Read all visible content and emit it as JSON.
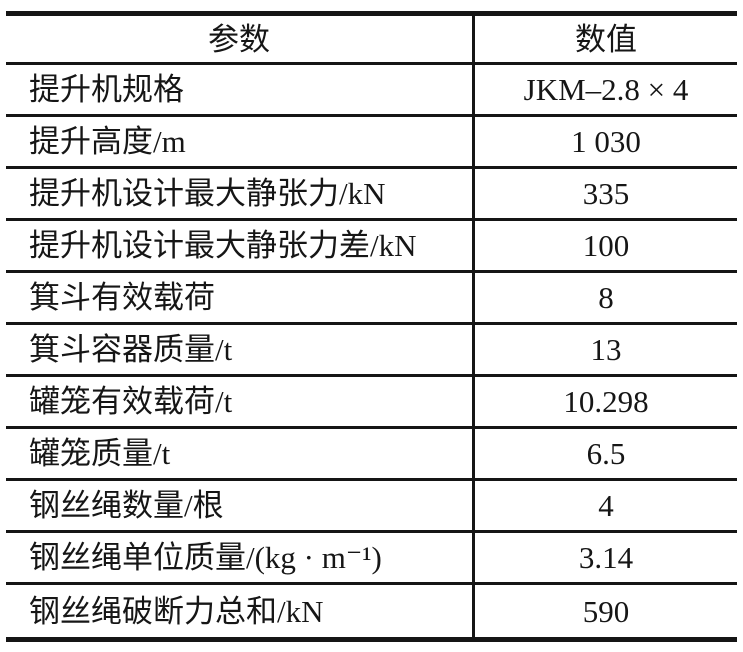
{
  "table": {
    "headers": [
      "参数",
      "数值"
    ],
    "rows": [
      {
        "param": "提升机规格",
        "value": "JKM–2.8 × 4"
      },
      {
        "param": "提升高度/m",
        "value": "1 030"
      },
      {
        "param": "提升机设计最大静张力/kN",
        "value": "335"
      },
      {
        "param": "提升机设计最大静张力差/kN",
        "value": "100"
      },
      {
        "param": "箕斗有效载荷",
        "value": "8"
      },
      {
        "param": "箕斗容器质量/t",
        "value": "13"
      },
      {
        "param": "罐笼有效载荷/t",
        "value": "10.298"
      },
      {
        "param": "罐笼质量/t",
        "value": "6.5"
      },
      {
        "param": "钢丝绳数量/根",
        "value": "4"
      },
      {
        "param": "钢丝绳单位质量/(kg · m⁻¹)",
        "value": "3.14"
      },
      {
        "param": "钢丝绳破断力总和/kN",
        "value": "590"
      }
    ],
    "colors": {
      "line": "#151515",
      "text": "#161616",
      "background": "#ffffff"
    }
  }
}
